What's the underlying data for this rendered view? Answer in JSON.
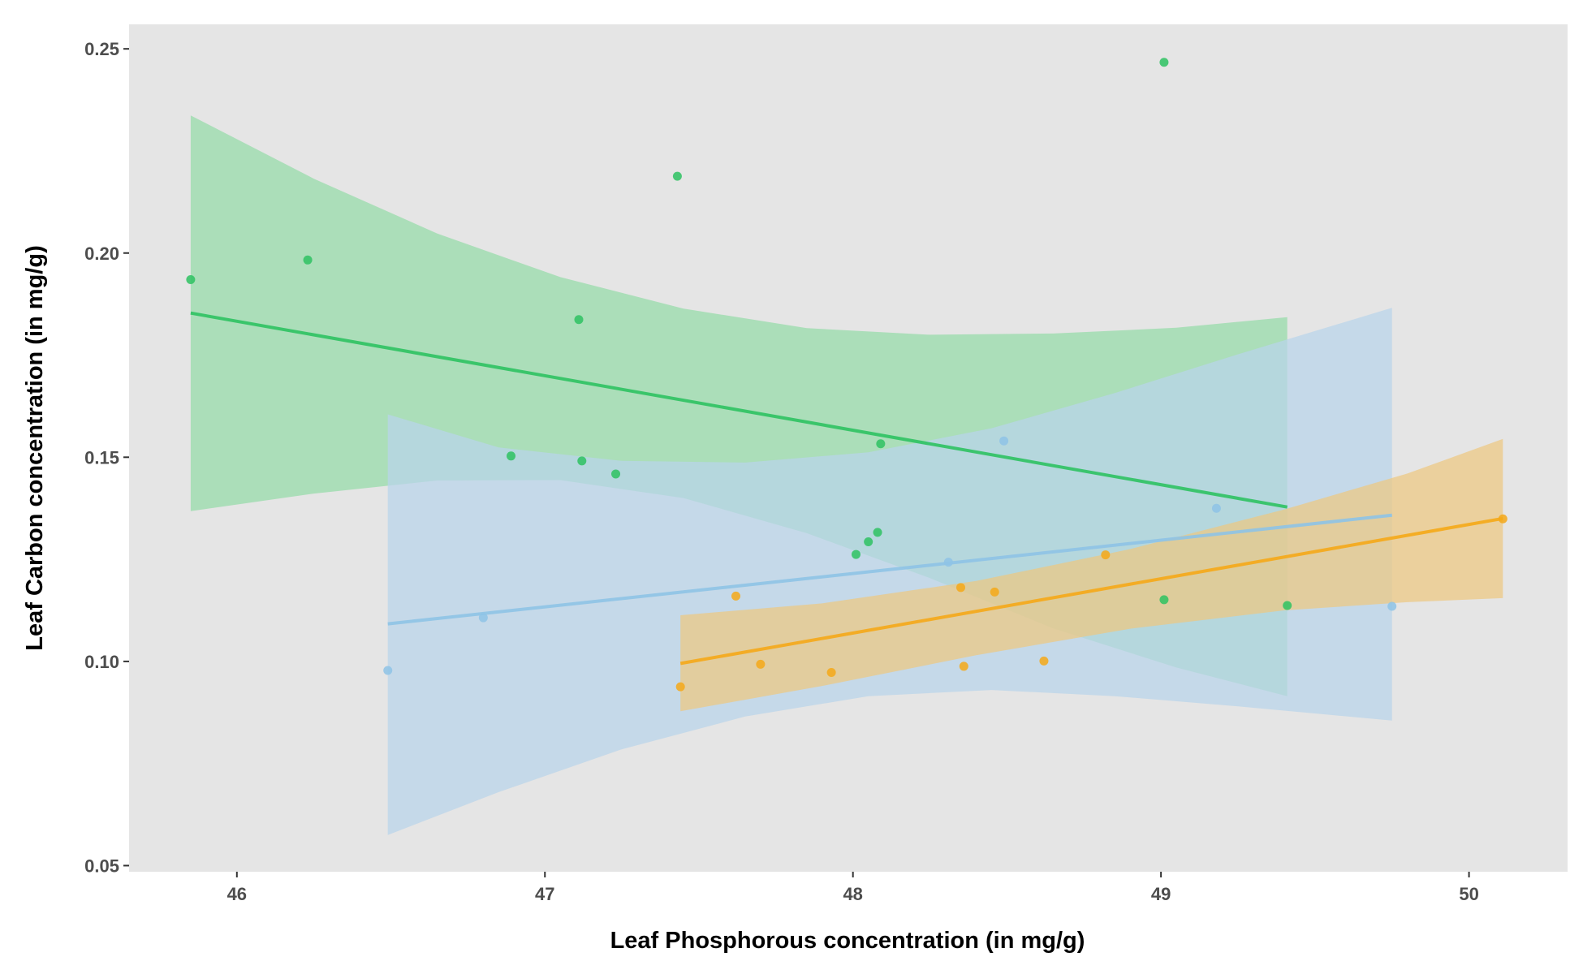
{
  "chart_data": {
    "type": "scatter",
    "title": "",
    "xlabel": "Leaf Phosphorous concentration (in mg/g)",
    "ylabel": "Leaf Carbon concentration (in mg/g)",
    "xlim": [
      45.65,
      50.32
    ],
    "ylim": [
      0.0485,
      0.256
    ],
    "x_ticks": [
      46,
      47,
      48,
      49,
      50
    ],
    "y_ticks": [
      0.05,
      0.1,
      0.15,
      0.2,
      0.25
    ],
    "x_tick_labels": [
      "46",
      "47",
      "48",
      "49",
      "50"
    ],
    "y_tick_labels": [
      "0.05",
      "0.10",
      "0.15",
      "0.20",
      "0.25"
    ],
    "grid": false,
    "legend": "none",
    "panel_background": "#e5e5e5",
    "series": [
      {
        "color": "#2ec262",
        "band_color": "#94dba8",
        "points": [
          {
            "x": 45.85,
            "y": 0.1935
          },
          {
            "x": 46.23,
            "y": 0.1983
          },
          {
            "x": 46.89,
            "y": 0.1503
          },
          {
            "x": 47.11,
            "y": 0.1837
          },
          {
            "x": 47.12,
            "y": 0.1491
          },
          {
            "x": 47.23,
            "y": 0.1459
          },
          {
            "x": 47.43,
            "y": 0.2188
          },
          {
            "x": 48.01,
            "y": 0.1262
          },
          {
            "x": 48.05,
            "y": 0.1293
          },
          {
            "x": 48.08,
            "y": 0.1316
          },
          {
            "x": 48.09,
            "y": 0.1533
          },
          {
            "x": 49.01,
            "y": 0.2467
          },
          {
            "x": 49.01,
            "y": 0.1151
          },
          {
            "x": 49.41,
            "y": 0.1137
          }
        ],
        "fit": {
          "x": [
            45.85,
            49.41
          ],
          "y": [
            0.1853,
            0.1378
          ]
        },
        "band_x": [
          45.85,
          46.25,
          46.65,
          47.05,
          47.45,
          47.85,
          48.25,
          48.65,
          49.05,
          49.41
        ],
        "band_upper": [
          0.2337,
          0.2182,
          0.2048,
          0.1941,
          0.1864,
          0.1816,
          0.18,
          0.1803,
          0.1817,
          0.1843
        ],
        "band_lower": [
          0.1368,
          0.1411,
          0.1443,
          0.1444,
          0.14,
          0.1314,
          0.1204,
          0.1081,
          0.0985,
          0.0915
        ]
      },
      {
        "color": "#8ec3e6",
        "band_color": "#b8d4ea",
        "points": [
          {
            "x": 46.49,
            "y": 0.0978
          },
          {
            "x": 46.8,
            "y": 0.1107
          },
          {
            "x": 48.31,
            "y": 0.1243
          },
          {
            "x": 48.49,
            "y": 0.154
          },
          {
            "x": 49.18,
            "y": 0.1375
          },
          {
            "x": 49.75,
            "y": 0.1135
          }
        ],
        "fit": {
          "x": [
            46.49,
            49.75
          ],
          "y": [
            0.1092,
            0.1358
          ]
        },
        "band_x": [
          46.49,
          46.85,
          47.25,
          47.65,
          48.05,
          48.45,
          48.85,
          49.25,
          49.75
        ],
        "band_upper": [
          0.1605,
          0.1524,
          0.1491,
          0.1487,
          0.1512,
          0.1571,
          0.1657,
          0.1752,
          0.1866
        ],
        "band_lower": [
          0.0575,
          0.068,
          0.0785,
          0.0865,
          0.0915,
          0.093,
          0.0915,
          0.089,
          0.0855
        ]
      },
      {
        "color": "#f5a818",
        "band_color": "#edc781",
        "points": [
          {
            "x": 47.44,
            "y": 0.0938
          },
          {
            "x": 47.62,
            "y": 0.116
          },
          {
            "x": 47.7,
            "y": 0.0993
          },
          {
            "x": 47.93,
            "y": 0.0973
          },
          {
            "x": 48.35,
            "y": 0.1181
          },
          {
            "x": 48.36,
            "y": 0.0988
          },
          {
            "x": 48.46,
            "y": 0.117
          },
          {
            "x": 48.62,
            "y": 0.1001
          },
          {
            "x": 48.82,
            "y": 0.1261
          },
          {
            "x": 50.11,
            "y": 0.1349
          }
        ],
        "fit": {
          "x": [
            47.44,
            50.11
          ],
          "y": [
            0.0995,
            0.135
          ]
        },
        "band_x": [
          47.44,
          47.9,
          48.4,
          48.9,
          49.4,
          49.8,
          50.11
        ],
        "band_upper": [
          0.1113,
          0.1142,
          0.1197,
          0.1275,
          0.1372,
          0.146,
          0.1545
        ],
        "band_lower": [
          0.0878,
          0.094,
          0.1015,
          0.108,
          0.1125,
          0.1145,
          0.1155
        ]
      }
    ]
  }
}
